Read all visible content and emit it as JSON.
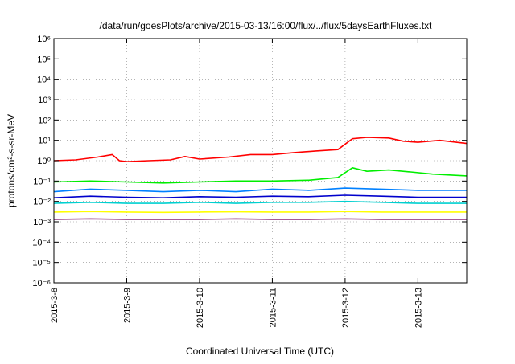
{
  "chart_data": {
    "type": "line",
    "title": "/data/run/goesPlots/archive/2015-03-13/16:00/flux/../flux/5daysEarthFluxes.txt",
    "xlabel": "Coordinated Universal Time (UTC)",
    "ylabel": "protons/cm²-s-sr-MeV",
    "yscale": "log",
    "ylim": [
      1e-06,
      1000000.0
    ],
    "xlim": [
      "2015-3-8",
      "2015-3-13 16:00"
    ],
    "grid": true,
    "legend": "none",
    "x_ticks": [
      "2015-3-8",
      "2015-3-9",
      "2015-3-10",
      "2015-3-11",
      "2015-3-12",
      "2015-3-13"
    ],
    "y_ticks": [
      "10⁻⁶",
      "10⁻⁵",
      "10⁻⁴",
      "10⁻³",
      "10⁻²",
      "10⁻¹",
      "10⁰",
      "10¹",
      "10²",
      "10³",
      "10⁴",
      "10⁵",
      "10⁶"
    ],
    "series": [
      {
        "color": "#ff0000",
        "x": [
          0,
          0.3,
          0.6,
          0.8,
          0.9,
          1.0,
          1.3,
          1.6,
          1.8,
          2.0,
          2.4,
          2.7,
          3.0,
          3.3,
          3.6,
          3.9,
          4.1,
          4.3,
          4.6,
          4.8,
          5.0,
          5.3,
          5.67
        ],
        "y": [
          1.0,
          1.1,
          1.5,
          2.0,
          1.0,
          0.9,
          1.0,
          1.1,
          1.6,
          1.2,
          1.5,
          2.0,
          2.0,
          2.5,
          3.0,
          3.5,
          12,
          14,
          13,
          9,
          8,
          10,
          7
        ]
      },
      {
        "color": "#00ee00",
        "x": [
          0,
          0.5,
          1.0,
          1.5,
          2.0,
          2.5,
          3.0,
          3.5,
          3.9,
          4.1,
          4.3,
          4.6,
          4.9,
          5.2,
          5.67
        ],
        "y": [
          0.09,
          0.1,
          0.09,
          0.08,
          0.09,
          0.1,
          0.1,
          0.11,
          0.15,
          0.45,
          0.3,
          0.35,
          0.28,
          0.22,
          0.18
        ]
      },
      {
        "color": "#0080ff",
        "x": [
          0,
          0.5,
          1.0,
          1.5,
          2.0,
          2.5,
          3.0,
          3.5,
          4.0,
          4.5,
          5.0,
          5.67
        ],
        "y": [
          0.03,
          0.04,
          0.035,
          0.03,
          0.035,
          0.03,
          0.04,
          0.035,
          0.045,
          0.04,
          0.035,
          0.035
        ]
      },
      {
        "color": "#0000cc",
        "x": [
          0,
          0.5,
          1.0,
          1.5,
          2.0,
          2.5,
          3.0,
          3.5,
          4.0,
          4.5,
          5.0,
          5.67
        ],
        "y": [
          0.015,
          0.018,
          0.016,
          0.015,
          0.017,
          0.016,
          0.018,
          0.017,
          0.02,
          0.018,
          0.016,
          0.016
        ]
      },
      {
        "color": "#00d0d0",
        "x": [
          0,
          0.5,
          1.0,
          1.5,
          2.0,
          2.5,
          3.0,
          3.5,
          4.0,
          4.5,
          5.0,
          5.67
        ],
        "y": [
          0.008,
          0.009,
          0.008,
          0.008,
          0.009,
          0.008,
          0.009,
          0.009,
          0.01,
          0.009,
          0.008,
          0.008
        ]
      },
      {
        "color": "#ffff00",
        "x": [
          0,
          0.5,
          1.0,
          1.5,
          2.0,
          2.5,
          3.0,
          3.5,
          4.0,
          4.5,
          5.0,
          5.67
        ],
        "y": [
          0.003,
          0.0032,
          0.003,
          0.0029,
          0.003,
          0.0031,
          0.003,
          0.003,
          0.0032,
          0.003,
          0.003,
          0.003
        ]
      },
      {
        "color": "#994488",
        "x": [
          0,
          0.5,
          1.0,
          1.5,
          2.0,
          2.5,
          3.0,
          3.5,
          4.0,
          4.5,
          5.0,
          5.67
        ],
        "y": [
          0.0013,
          0.0014,
          0.0013,
          0.0013,
          0.0013,
          0.0014,
          0.0013,
          0.0013,
          0.0014,
          0.0013,
          0.0013,
          0.0013
        ]
      }
    ]
  }
}
